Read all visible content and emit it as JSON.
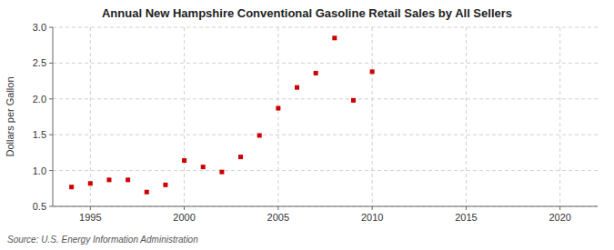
{
  "chart_data": {
    "type": "scatter",
    "title": "Annual New Hampshire Conventional Gasoline Retail Sales by All Sellers",
    "ylabel": "Dollars per Gallon",
    "source": "Source: U.S. Energy Information Administration",
    "x": [
      1994,
      1995,
      1996,
      1997,
      1998,
      1999,
      2000,
      2001,
      2002,
      2003,
      2004,
      2005,
      2006,
      2007,
      2008,
      2009,
      2010
    ],
    "values": [
      0.77,
      0.82,
      0.87,
      0.87,
      0.7,
      0.8,
      1.14,
      1.05,
      0.98,
      1.19,
      1.49,
      1.87,
      2.16,
      2.36,
      2.85,
      1.98,
      2.38
    ],
    "color": "#cc0000",
    "marker": "square",
    "xlim": [
      1993,
      2022
    ],
    "ylim": [
      0.5,
      3.0
    ],
    "xticks": [
      1995,
      2000,
      2005,
      2010,
      2015,
      2020
    ],
    "yticks": [
      0.5,
      {
        "value": 1.0,
        "label": "1.0"
      },
      1.5,
      {
        "value": 2.0,
        "label": "2.0"
      },
      2.5,
      {
        "value": 3.0,
        "label": "3.0"
      }
    ],
    "grid": true
  }
}
